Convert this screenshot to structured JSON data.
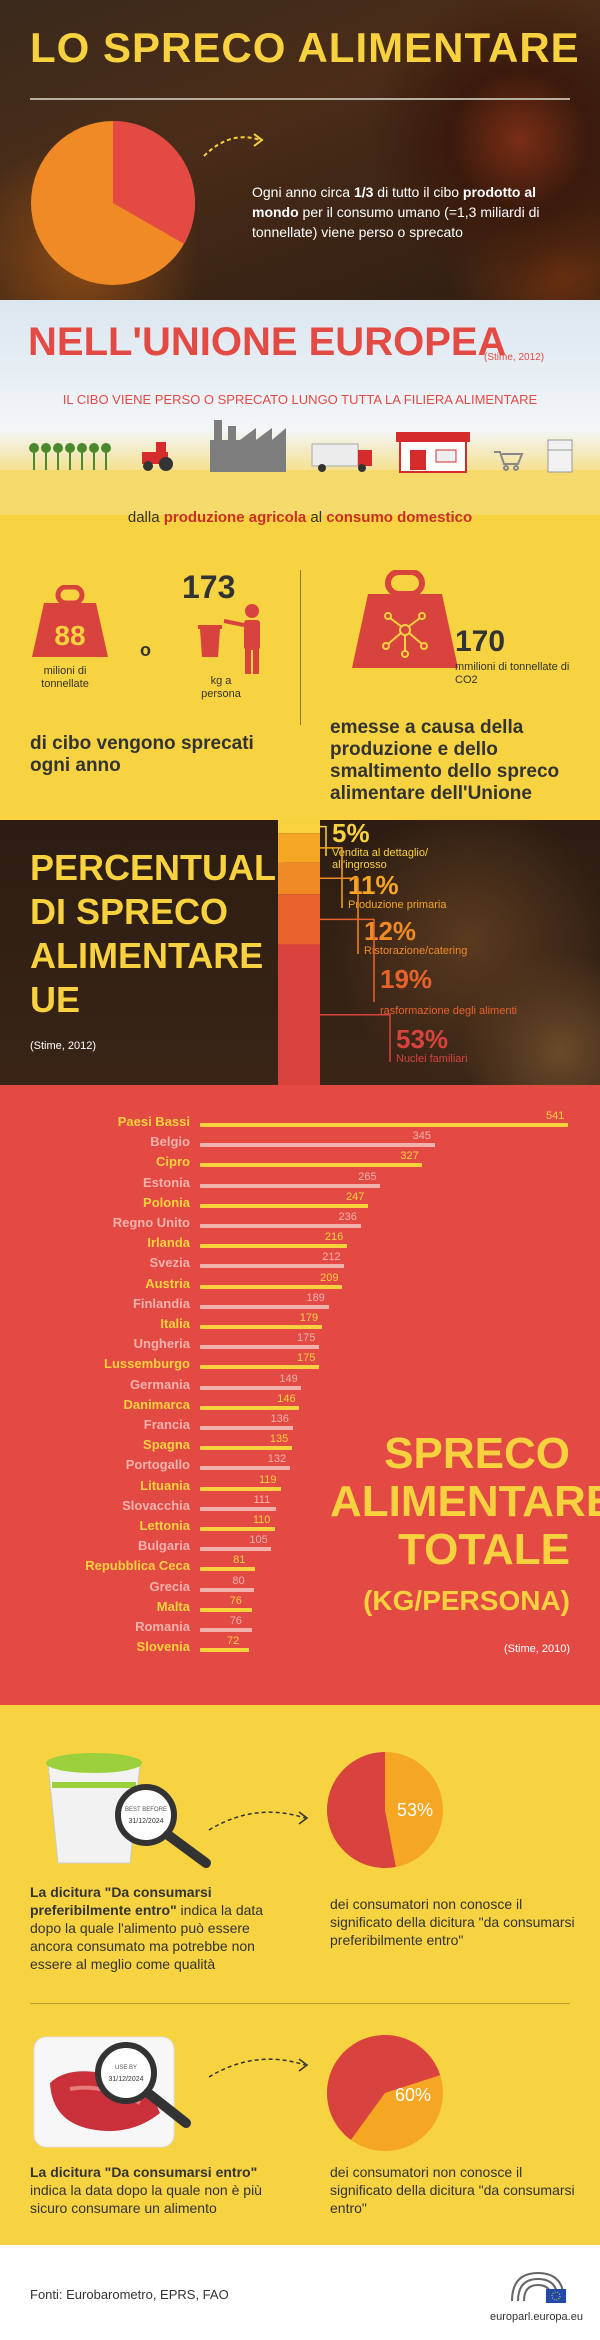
{
  "header": {
    "title": "LO SPRECO ALIMENTARE",
    "intro_part1": "Ogni anno circa ",
    "intro_bold1": "1/3",
    "intro_part2": " di tutto il cibo ",
    "intro_bold2": "prodotto al mondo",
    "intro_part3": " per il consumo umano (=1,3 miliardi di tonnellate) viene perso o sprecato",
    "pie_fraction": 0.333
  },
  "eu": {
    "title": "NELL'UNIONE EUROPEA",
    "stime": "(Stime, 2012)",
    "chain_text": "IL CIBO VIENE PERSO O SPRECATO LUNGO TUTTA LA FILIERA ALIMENTARE",
    "chain_sub_1": "dalla ",
    "chain_sub_bold1": "produzione agricola",
    "chain_sub_2": " al ",
    "chain_sub_bold2": "consumo domestico"
  },
  "stats": {
    "tonnes_value": "88",
    "tonnes_label": "milioni di tonnellate",
    "or_label": "o",
    "per_person_value": "173",
    "per_person_label": "kg a persona",
    "waste_caption": "di cibo vengono sprecati ogni anno",
    "co2_value": "170",
    "co2_label": "mmilioni di tonnellate di CO2",
    "co2_caption": "emesse a causa della produzione e dello smaltimento dello spreco alimentare dell'Unione"
  },
  "percentages": {
    "title_lines": [
      "PERCENTUALI",
      "DI SPRECO",
      "ALIMENTARE",
      "UE"
    ],
    "stime": "(Stime, 2012)",
    "items": [
      {
        "value": "5%",
        "label": "Vendita al dettaglio/ all'ingrosso",
        "color": "#f7d23e"
      },
      {
        "value": "11%",
        "label": "Produzione primaria",
        "color": "#f5a623"
      },
      {
        "value": "12%",
        "label": "Ristorazione/catering",
        "color": "#f08a24"
      },
      {
        "value": "19%",
        "label": "Trasformazione degli alimenti",
        "color": "#e8622c"
      },
      {
        "value": "53%",
        "label": "Nuclei familiari",
        "color": "#d9433e"
      }
    ]
  },
  "chart_data": {
    "type": "bar",
    "title": "SPRECO ALIMENTARE TOTALE",
    "unit": "(KG/PERSONA)",
    "stime": "(Stime, 2010)",
    "categories": [
      "Paesi Bassi",
      "Belgio",
      "Cipro",
      "Estonia",
      "Polonia",
      "Regno Unito",
      "Irlanda",
      "Svezia",
      "Austria",
      "Finlandia",
      "Italia",
      "Ungheria",
      "Lussemburgo",
      "Germania",
      "Danimarca",
      "Francia",
      "Spagna",
      "Portogallo",
      "Lituania",
      "Slovacchia",
      "Lettonia",
      "Bulgaria",
      "Repubblica Ceca",
      "Grecia",
      "Malta",
      "Romania",
      "Slovenia"
    ],
    "values": [
      541,
      345,
      327,
      265,
      247,
      236,
      216,
      212,
      209,
      189,
      179,
      175,
      175,
      149,
      146,
      136,
      135,
      132,
      119,
      111,
      110,
      105,
      81,
      80,
      76,
      76,
      72
    ]
  },
  "labels": {
    "best_before_title": "La dicitura \"Da consumarsi preferibilmente entro\"",
    "best_before_text": " indica la data dopo la quale l'alimento può essere ancora consumato ma potrebbe non essere al meglio come qualità",
    "best_before_pct": "53%",
    "best_before_fraction": 0.53,
    "best_before_desc": "dei consumatori non conosce il significato della dicitura \"da consumarsi preferibilmente entro\"",
    "best_before_stamp": "BEST BEFORE",
    "best_before_date": "31/12/2024",
    "use_by_title": "La dicitura \"Da consumarsi entro\"",
    "use_by_text": " indica la data dopo la quale non è più sicuro consumare un alimento",
    "use_by_pct": "60%",
    "use_by_fraction": 0.6,
    "use_by_desc": "dei consumatori non conosce il significato della dicitura \"da consumarsi entro\"",
    "use_by_stamp": "USE BY",
    "use_by_date": "31/12/2024"
  },
  "footer": {
    "sources": "Fonti: Eurobarometro, EPRS, FAO",
    "site": "europarl.europa.eu"
  }
}
